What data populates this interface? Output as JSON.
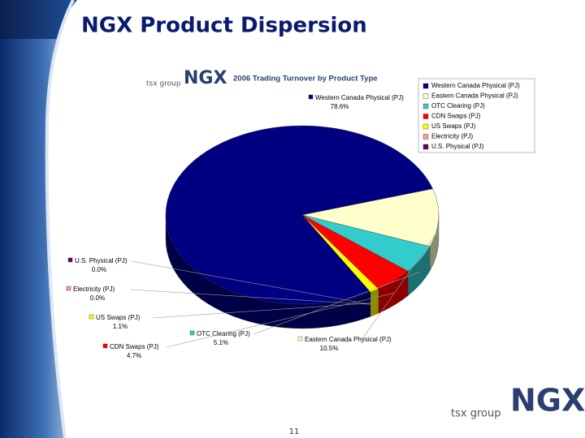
{
  "slide": {
    "title": "NGX Product Dispersion",
    "page_number": "11",
    "logo_small": "tsx group",
    "logo_big": "NGX"
  },
  "chart_data": {
    "type": "pie",
    "title": "2006 Trading Turnover by Product Type",
    "categories": [
      "Western Canada Physical (PJ)",
      "Eastern Canada Physical (PJ)",
      "OTC Clearing (PJ)",
      "CDN Swaps (PJ)",
      "US Swaps (PJ)",
      "Electricity (PJ)",
      "U.S. Physical (PJ)"
    ],
    "values": [
      78.6,
      10.5,
      5.1,
      4.7,
      1.1,
      0.0,
      0.0
    ],
    "value_labels": [
      "78.6%",
      "10.5%",
      "5.1%",
      "4.7%",
      "1.1%",
      "0.0%",
      "0.0%"
    ],
    "colors": [
      "#000080",
      "#ffffcc",
      "#33cccc",
      "#ff0000",
      "#ffff00",
      "#ff9999",
      "#660066"
    ],
    "legend": "right"
  }
}
